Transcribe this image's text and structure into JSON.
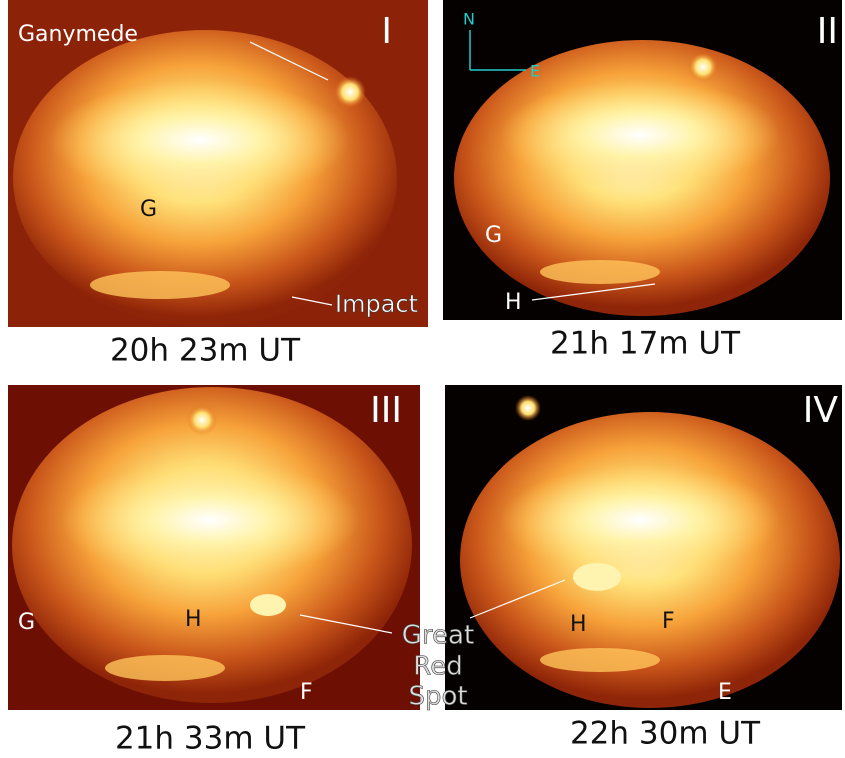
{
  "panels": [
    {
      "numeral": "I",
      "caption": "20h 23m UT",
      "labels": [
        "Ganymede",
        "G"
      ]
    },
    {
      "numeral": "II",
      "caption": "21h 17m UT",
      "compass": [
        "N",
        "E"
      ],
      "labels": [
        "G",
        "H"
      ]
    },
    {
      "numeral": "III",
      "caption": "21h 33m UT",
      "labels": [
        "G",
        "H",
        "F"
      ]
    },
    {
      "numeral": "IV",
      "caption": "22h 30m UT",
      "labels": [
        "H",
        "F",
        "E"
      ]
    }
  ],
  "annotations": {
    "impact": "Impact",
    "great_red_spot": [
      "Great",
      "Red",
      "Spot"
    ]
  }
}
